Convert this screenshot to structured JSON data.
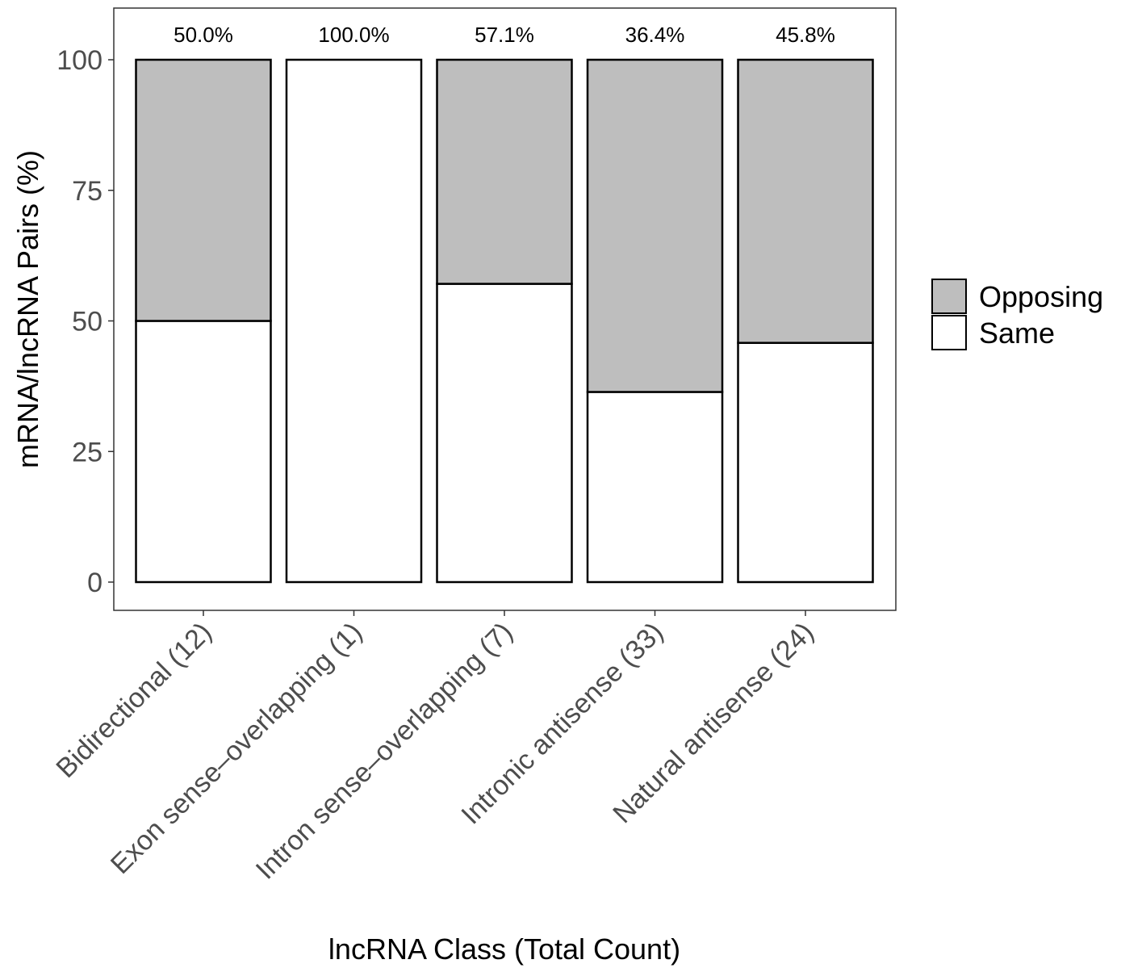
{
  "chart_data": {
    "type": "bar",
    "stacked": true,
    "categories": [
      "Bidirectional (12)",
      "Exon sense–overlapping (1)",
      "Intron sense–overlapping (7)",
      "Intronic antisense (33)",
      "Natural antisense (24)"
    ],
    "series": [
      {
        "name": "Same",
        "values": [
          50.0,
          100.0,
          57.1,
          36.4,
          45.8
        ],
        "color": "#ffffff"
      },
      {
        "name": "Opposing",
        "values": [
          50.0,
          0.0,
          42.9,
          63.6,
          54.2
        ],
        "color": "#bebebe"
      }
    ],
    "bar_labels": [
      "50.0%",
      "100.0%",
      "57.1%",
      "36.4%",
      "45.8%"
    ],
    "xlabel": "lncRNA Class (Total Count)",
    "ylabel": "mRNA/lncRNA Pairs (%)",
    "ylim": [
      0,
      100
    ],
    "yticks": [
      0,
      25,
      50,
      75,
      100
    ],
    "grid": false,
    "legend": {
      "position": "right",
      "entries": [
        {
          "label": "Opposing",
          "color": "#bebebe"
        },
        {
          "label": "Same",
          "color": "#ffffff"
        }
      ]
    }
  }
}
